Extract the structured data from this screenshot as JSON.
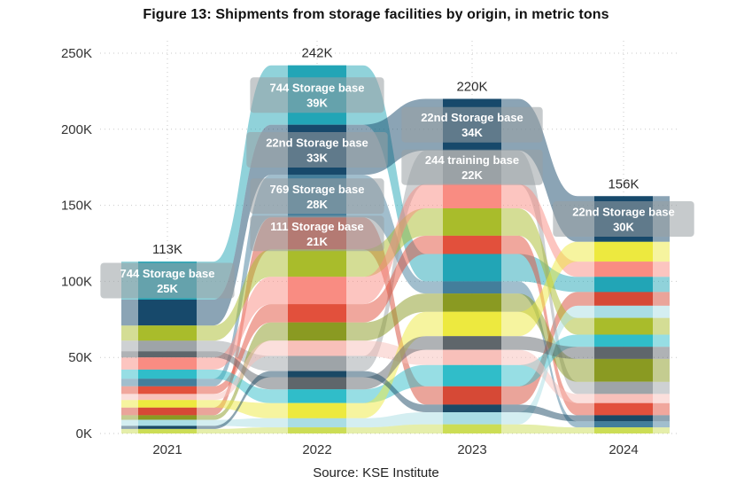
{
  "title": "Figure 13: Shipments from storage facilities by origin, in metric tons",
  "source": "Source: KSE Institute",
  "chart_data": {
    "type": "area",
    "subtype": "alluvial-stream (sankey-style bump chart)",
    "grid": "dotted",
    "legend": "none (labels inline on bands)",
    "unit": "thousand metric tons",
    "x_categories": [
      "2021",
      "2022",
      "2023",
      "2024"
    ],
    "column_totals": [
      "113K",
      "242K",
      "220K",
      "156K"
    ],
    "column_totals_values": [
      113,
      242,
      220,
      156
    ],
    "ylim": [
      0,
      250
    ],
    "y_ticks": [
      {
        "value": 0,
        "label": "0K"
      },
      {
        "value": 50,
        "label": "50K"
      },
      {
        "value": 100,
        "label": "100K"
      },
      {
        "value": 150,
        "label": "150K"
      },
      {
        "value": 200,
        "label": "200K"
      },
      {
        "value": 250,
        "label": "250K"
      }
    ],
    "series": [
      {
        "id": "s744",
        "name": "744 Storage base",
        "color": "#22A5B6",
        "values": [
          25,
          39,
          18,
          10
        ]
      },
      {
        "id": "s22",
        "name": "22nd Storage base",
        "color": "#17496B",
        "values": [
          17,
          33,
          34,
          30
        ]
      },
      {
        "id": "s769",
        "name": "769 Storage base",
        "color": "#437E9B",
        "values": [
          5,
          28,
          8,
          4
        ]
      },
      {
        "id": "s111",
        "name": "111 Storage base",
        "color": "#D64936",
        "values": [
          5,
          21,
          12,
          9
        ]
      },
      {
        "id": "s244",
        "name": "244 training base",
        "color": "#9EA4A8",
        "values": [
          7,
          10,
          22,
          8
        ]
      },
      {
        "id": "olive",
        "name": "",
        "color": "#A9BC2B",
        "values": [
          10,
          18,
          18,
          11
        ]
      },
      {
        "id": "salmon",
        "name": "",
        "color": "#F98C82",
        "values": [
          8,
          18,
          16,
          10
        ]
      },
      {
        "id": "red2",
        "name": "",
        "color": "#E2503C",
        "values": [
          5,
          12,
          12,
          8
        ]
      },
      {
        "id": "olive2",
        "name": "",
        "color": "#8A9A22",
        "values": [
          3,
          12,
          12,
          15
        ]
      },
      {
        "id": "turq",
        "name": "",
        "color": "#30BDC9",
        "values": [
          6,
          9,
          14,
          8
        ]
      },
      {
        "id": "pink",
        "name": "",
        "color": "#F8C0BA",
        "values": [
          4,
          10,
          10,
          6
        ]
      },
      {
        "id": "yellow",
        "name": "",
        "color": "#EDE93F",
        "values": [
          5,
          10,
          16,
          13
        ]
      },
      {
        "id": "dkgray",
        "name": "",
        "color": "#5F666B",
        "values": [
          4,
          8,
          9,
          8
        ]
      },
      {
        "id": "ltcyan",
        "name": "",
        "color": "#AADDE4",
        "values": [
          4,
          6,
          8,
          8
        ]
      },
      {
        "id": "lime",
        "name": "",
        "color": "#CCDD55",
        "values": [
          3,
          4,
          6,
          4
        ]
      },
      {
        "id": "navy2",
        "name": "",
        "color": "#1B4965",
        "values": [
          2,
          4,
          5,
          4
        ]
      }
    ],
    "order": [
      [
        "s744",
        "s22",
        "olive",
        "s244",
        "dkgray",
        "salmon",
        "turq",
        "s769",
        "red2",
        "pink",
        "yellow",
        "s111",
        "olive2",
        "ltcyan",
        "navy2",
        "lime"
      ],
      [
        "s744",
        "s22",
        "s769",
        "s111",
        "olive",
        "salmon",
        "red2",
        "olive2",
        "pink",
        "s244",
        "navy2",
        "dkgray",
        "turq",
        "yellow",
        "ltcyan",
        "lime"
      ],
      [
        "s22",
        "s244",
        "salmon",
        "olive",
        "red2",
        "s744",
        "s769",
        "olive2",
        "yellow",
        "dkgray",
        "pink",
        "turq",
        "s111",
        "navy2",
        "ltcyan",
        "lime"
      ],
      [
        "s22",
        "yellow",
        "salmon",
        "s744",
        "s111",
        "ltcyan",
        "olive",
        "turq",
        "dkgray",
        "olive2",
        "s244",
        "pink",
        "red2",
        "navy2",
        "s769",
        "lime"
      ]
    ],
    "labels": [
      {
        "x_index": 0,
        "series": "s744",
        "line1": "744 Storage base",
        "line2": "25K"
      },
      {
        "x_index": 1,
        "series": "s744",
        "line1": "744 Storage base",
        "line2": "39K"
      },
      {
        "x_index": 1,
        "series": "s22",
        "line1": "22nd Storage base",
        "line2": "33K"
      },
      {
        "x_index": 1,
        "series": "s769",
        "line1": "769 Storage base",
        "line2": "28K"
      },
      {
        "x_index": 1,
        "series": "s111",
        "line1": "111 Storage base",
        "line2": "21K"
      },
      {
        "x_index": 2,
        "series": "s22",
        "line1": "22nd Storage base",
        "line2": "34K"
      },
      {
        "x_index": 2,
        "series": "s244",
        "line1": "244 training base",
        "line2": "22K"
      },
      {
        "x_index": 3,
        "series": "s22",
        "line1": "22nd Storage base",
        "line2": "30K"
      }
    ]
  }
}
